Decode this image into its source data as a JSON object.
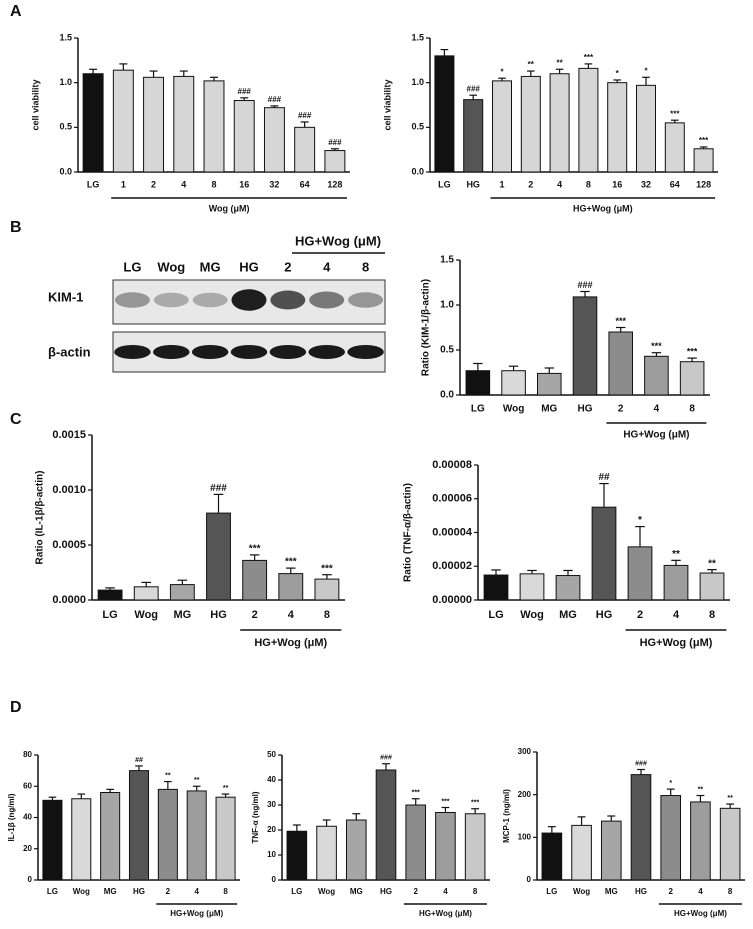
{
  "panels": [
    "A",
    "B",
    "C",
    "D"
  ],
  "blot": {
    "lanes": [
      "LG",
      "Wog",
      "MG",
      "HG",
      "2",
      "4",
      "8"
    ],
    "group_label": "HG+Wog (μM)",
    "rows": [
      "KIM-1",
      "β-actin"
    ]
  },
  "chart_data": [
    {
      "type": "bar",
      "y_label": "cell viability",
      "group_label": "Wog (μM)",
      "categories": [
        "LG",
        "1",
        "2",
        "4",
        "8",
        "16",
        "32",
        "64",
        "128"
      ],
      "values": [
        1.1,
        1.14,
        1.06,
        1.07,
        1.02,
        0.8,
        0.72,
        0.5,
        0.24
      ],
      "errors": [
        0.05,
        0.07,
        0.07,
        0.06,
        0.04,
        0.03,
        0.02,
        0.06,
        0.02
      ],
      "annotations": [
        null,
        null,
        null,
        null,
        null,
        "###",
        "###",
        "###",
        "###"
      ],
      "colors": [
        "#111111",
        "#d6d6d6",
        "#d6d6d6",
        "#d6d6d6",
        "#d6d6d6",
        "#d6d6d6",
        "#d6d6d6",
        "#d6d6d6",
        "#d6d6d6"
      ],
      "ylim": [
        0,
        1.5
      ],
      "yticks": [
        {
          "value": 0,
          "label": "0.0"
        },
        0.5,
        {
          "value": 1,
          "label": "1.0"
        },
        1.5
      ]
    },
    {
      "type": "bar",
      "y_label": "cell viability",
      "group_label": "HG+Wog (μM)",
      "categories": [
        "LG",
        "HG",
        "1",
        "2",
        "4",
        "8",
        "16",
        "32",
        "64",
        "128"
      ],
      "values": [
        1.3,
        0.81,
        1.02,
        1.07,
        1.1,
        1.16,
        1.0,
        0.97,
        0.55,
        0.26
      ],
      "errors": [
        0.07,
        0.05,
        0.03,
        0.06,
        0.05,
        0.05,
        0.03,
        0.09,
        0.03,
        0.02
      ],
      "annotations": [
        null,
        "###",
        "*",
        "**",
        "**",
        "***",
        "*",
        "*",
        "***",
        "***"
      ],
      "colors": [
        "#111111",
        "#555555",
        "#d6d6d6",
        "#d6d6d6",
        "#d6d6d6",
        "#d6d6d6",
        "#d6d6d6",
        "#d6d6d6",
        "#d6d6d6",
        "#d6d6d6"
      ],
      "ylim": [
        0,
        1.5
      ],
      "yticks": [
        {
          "value": 0,
          "label": "0.0"
        },
        0.5,
        {
          "value": 1,
          "label": "1.0"
        },
        1.5
      ]
    },
    {
      "type": "bar",
      "y_label": "Ratio (KIM-1/β-actin)",
      "group_label": "HG+Wog (μM)",
      "categories": [
        "LG",
        "Wog",
        "MG",
        "HG",
        "2",
        "4",
        "8"
      ],
      "values": [
        0.27,
        0.27,
        0.24,
        1.09,
        0.7,
        0.43,
        0.37
      ],
      "errors": [
        0.08,
        0.05,
        0.06,
        0.06,
        0.05,
        0.04,
        0.04
      ],
      "annotations": [
        null,
        null,
        null,
        "###",
        "***",
        "***",
        "***"
      ],
      "colors": [
        "#111111",
        "#d9d9d9",
        "#a6a6a6",
        "#555555",
        "#8c8c8c",
        "#9d9d9d",
        "#c8c8c8"
      ],
      "ylim": [
        0,
        1.5
      ],
      "yticks": [
        {
          "value": 0,
          "label": "0.0"
        },
        0.5,
        {
          "value": 1,
          "label": "1.0"
        },
        1.5
      ]
    },
    {
      "type": "bar",
      "y_label": "Ratio (IL-1β/β-actin)",
      "group_label": "HG+Wog (μM)",
      "categories": [
        "LG",
        "Wog",
        "MG",
        "HG",
        "2",
        "4",
        "8"
      ],
      "values": [
        9e-05,
        0.00012,
        0.00014,
        0.00079,
        0.00036,
        0.00024,
        0.00019
      ],
      "errors": [
        2e-05,
        4e-05,
        4e-05,
        0.00017,
        5e-05,
        5e-05,
        4e-05
      ],
      "annotations": [
        null,
        null,
        null,
        "###",
        "***",
        "***",
        "***"
      ],
      "colors": [
        "#111111",
        "#d9d9d9",
        "#a6a6a6",
        "#555555",
        "#8c8c8c",
        "#9d9d9d",
        "#c8c8c8"
      ],
      "ylim": [
        0,
        0.0015
      ],
      "yticks": [
        {
          "value": 0,
          "label": "0.0000"
        },
        {
          "value": 0.0005,
          "label": "0.0005"
        },
        {
          "value": 0.001,
          "label": "0.0010"
        },
        {
          "value": 0.0015,
          "label": "0.0015"
        }
      ]
    },
    {
      "type": "bar",
      "y_label": "Ratio (TNF-α/β-actin)",
      "group_label": "HG+Wog (μM)",
      "categories": [
        "LG",
        "Wog",
        "MG",
        "HG",
        "2",
        "4",
        "8"
      ],
      "values": [
        1.48e-05,
        1.55e-05,
        1.45e-05,
        5.5e-05,
        3.15e-05,
        2.05e-05,
        1.6e-05
      ],
      "errors": [
        3e-06,
        2e-06,
        3e-06,
        1.4e-05,
        1.2e-05,
        3e-06,
        2e-06
      ],
      "annotations": [
        null,
        null,
        null,
        "##",
        "*",
        "**",
        "**"
      ],
      "colors": [
        "#111111",
        "#d9d9d9",
        "#a6a6a6",
        "#555555",
        "#8c8c8c",
        "#9d9d9d",
        "#c8c8c8"
      ],
      "ylim": [
        0,
        8e-05
      ],
      "yticks": [
        {
          "value": 0,
          "label": "0.00000"
        },
        {
          "value": 2e-05,
          "label": "0.00002"
        },
        {
          "value": 4e-05,
          "label": "0.00004"
        },
        {
          "value": 6e-05,
          "label": "0.00006"
        },
        {
          "value": 8e-05,
          "label": "0.00008"
        }
      ]
    },
    {
      "type": "bar",
      "y_label": "IL-1β (ng/ml)",
      "group_label": "HG+Wog (μM)",
      "categories": [
        "LG",
        "Wog",
        "MG",
        "HG",
        "2",
        "4",
        "8"
      ],
      "values": [
        51,
        52,
        56,
        70,
        58,
        57,
        53
      ],
      "errors": [
        2,
        3,
        2,
        3,
        5,
        3,
        2
      ],
      "annotations": [
        null,
        null,
        null,
        "##",
        "**",
        "**",
        "**"
      ],
      "colors": [
        "#111111",
        "#d9d9d9",
        "#a6a6a6",
        "#555555",
        "#8c8c8c",
        "#9d9d9d",
        "#c8c8c8"
      ],
      "ylim": [
        0,
        80
      ],
      "yticks": [
        0,
        20,
        40,
        60,
        80
      ]
    },
    {
      "type": "bar",
      "y_label": "TNF-α (ng/ml)",
      "group_label": "HG+Wog (μM)",
      "categories": [
        "LG",
        "Wog",
        "MG",
        "HG",
        "2",
        "4",
        "8"
      ],
      "values": [
        19.5,
        21.5,
        24,
        44,
        30,
        27,
        26.5
      ],
      "errors": [
        2.5,
        2.5,
        2.5,
        2.5,
        2.5,
        2,
        2
      ],
      "annotations": [
        null,
        null,
        null,
        "###",
        "***",
        "***",
        "***"
      ],
      "colors": [
        "#111111",
        "#d9d9d9",
        "#a6a6a6",
        "#555555",
        "#8c8c8c",
        "#9d9d9d",
        "#c8c8c8"
      ],
      "ylim": [
        0,
        50
      ],
      "yticks": [
        0,
        10,
        20,
        30,
        40,
        50
      ]
    },
    {
      "type": "bar",
      "y_label": "MCP-1 (ng/ml)",
      "group_label": "HG+Wog (μM)",
      "categories": [
        "LG",
        "Wog",
        "MG",
        "HG",
        "2",
        "4",
        "8"
      ],
      "values": [
        110,
        128,
        138,
        247,
        198,
        183,
        168
      ],
      "errors": [
        15,
        20,
        12,
        12,
        15,
        15,
        10
      ],
      "annotations": [
        null,
        null,
        null,
        "###",
        "*",
        "**",
        "**"
      ],
      "colors": [
        "#111111",
        "#d9d9d9",
        "#a6a6a6",
        "#555555",
        "#8c8c8c",
        "#9d9d9d",
        "#c8c8c8"
      ],
      "ylim": [
        0,
        300
      ],
      "yticks": [
        0,
        100,
        200,
        300
      ]
    }
  ]
}
